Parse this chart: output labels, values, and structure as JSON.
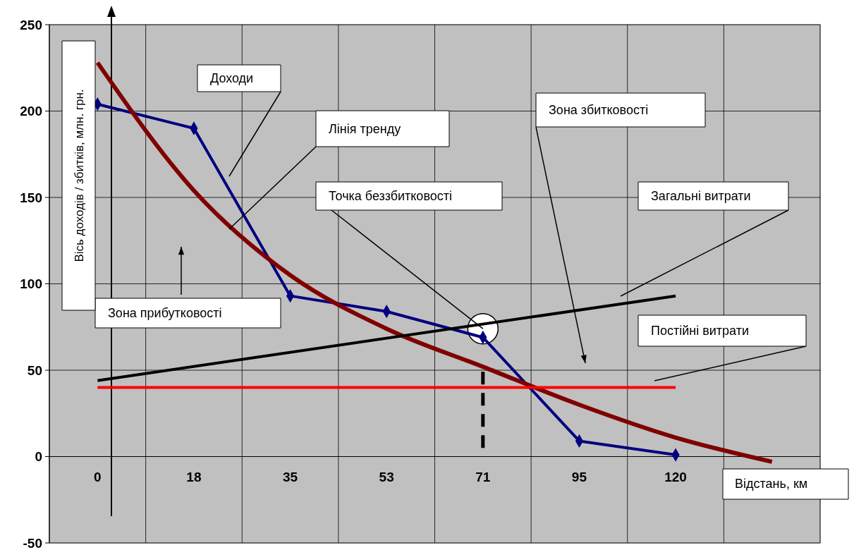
{
  "chart_data": {
    "type": "line",
    "xlabel": "Відстань, км",
    "ylabel": "Вісь доходів / збитків, млн. грн.",
    "categories": [
      "0",
      "18",
      "35",
      "53",
      "71",
      "95",
      "120",
      null
    ],
    "ylim": [
      -50,
      250
    ],
    "yticks": [
      -50,
      0,
      50,
      100,
      150,
      200,
      250
    ],
    "grid": true,
    "series": [
      {
        "type": "scatter",
        "color": "#ffffff",
        "marker": "circle",
        "values": [
          null,
          null,
          null,
          null,
          74,
          null,
          null,
          null
        ]
      },
      {
        "color": "#000080",
        "marker": "diamond",
        "values": [
          204,
          190,
          93,
          84,
          69,
          9,
          1,
          null
        ]
      },
      {
        "color": "#800000",
        "marker": "none",
        "values": [
          228,
          154,
          105,
          74,
          52,
          30,
          11,
          -3
        ]
      },
      {
        "color": "#000000",
        "marker": "none",
        "values": [
          44,
          null,
          null,
          null,
          null,
          null,
          93,
          null
        ]
      },
      {
        "color": "#ff0000",
        "marker": "none",
        "values": [
          40,
          null,
          null,
          null,
          null,
          null,
          40,
          null
        ]
      },
      {
        "color": "#000000",
        "marker": "none",
        "line_style": "dashed",
        "x": [
          "71",
          "71"
        ],
        "values": [
          5,
          52
        ]
      }
    ],
    "annotations": [
      "Доходи",
      "Лінія тренду",
      {
        "text": "Точка беззбитковості",
        "x": "71",
        "y": 74
      },
      "Зона збитковості",
      "Загальні витрати",
      "Постійні витрати",
      "Зона прибутковості"
    ]
  }
}
